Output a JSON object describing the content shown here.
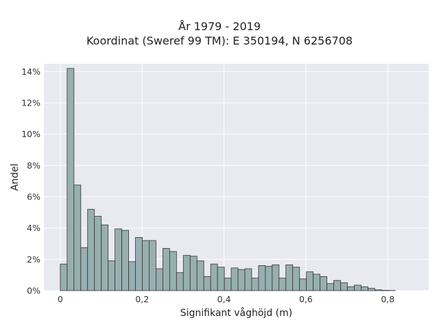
{
  "chart_data": {
    "type": "bar",
    "title": "År 1979 - 2019",
    "subtitle": "Koordinat (Sweref 99 TM): E 350194, N 6256708",
    "xlabel": "Signifikant våghöjd (m)",
    "ylabel": "Andel",
    "xlim": [
      -0.04,
      0.9
    ],
    "ylim": [
      0,
      14.5
    ],
    "x_ticks": [
      0,
      0.2,
      0.4,
      0.6,
      0.8
    ],
    "x_tick_labels": [
      "0",
      "0,2",
      "0,4",
      "0,6",
      "0,8"
    ],
    "y_ticks": [
      0,
      2,
      4,
      6,
      8,
      10,
      12,
      14
    ],
    "y_tick_labels": [
      "0%",
      "2%",
      "4%",
      "6%",
      "8%",
      "10%",
      "12%",
      "14%"
    ],
    "grid": true,
    "bin_start": 0,
    "bin_width": 0.0167,
    "values": [
      1.7,
      14.2,
      6.75,
      2.75,
      5.2,
      4.75,
      4.2,
      1.9,
      3.95,
      3.85,
      1.85,
      3.4,
      3.2,
      3.2,
      1.4,
      2.7,
      2.5,
      1.15,
      2.25,
      2.2,
      1.9,
      0.9,
      1.7,
      1.5,
      0.8,
      1.45,
      1.35,
      1.4,
      0.8,
      1.6,
      1.55,
      1.65,
      0.8,
      1.65,
      1.5,
      0.75,
      1.2,
      1.05,
      0.9,
      0.45,
      0.65,
      0.5,
      0.25,
      0.35,
      0.25,
      0.15,
      0.05,
      0.02,
      0.01
    ],
    "colors": {
      "bar_fill": "#97afb0",
      "bar_stroke": "#333333",
      "plot_bg": "#e9e9f1",
      "grid": "#ffffff"
    }
  }
}
